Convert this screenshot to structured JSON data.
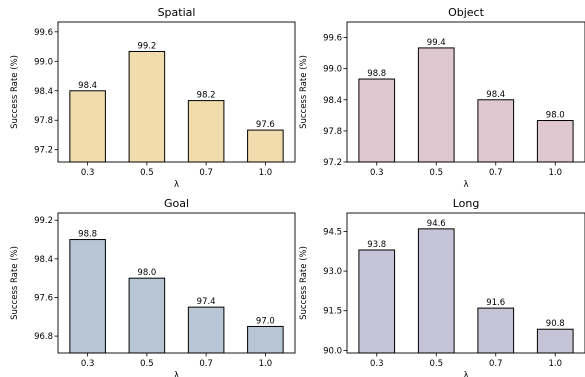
{
  "chart_data": [
    {
      "type": "bar",
      "title": "Spatial",
      "xlabel": "λ",
      "ylabel": "Success Rate (%)",
      "categories": [
        "0.3",
        "0.5",
        "0.7",
        "1.0"
      ],
      "values": [
        98.4,
        99.2,
        98.2,
        97.6
      ],
      "value_labels": [
        "98.4",
        "99.2",
        "98.2",
        "97.6"
      ],
      "ylim": [
        96.95,
        99.8
      ],
      "yticks": [
        97.2,
        97.8,
        98.4,
        99.0,
        99.6
      ],
      "ytick_labels": [
        "97.2",
        "97.8",
        "98.4",
        "99.0",
        "99.6"
      ],
      "color": "#f0dcac"
    },
    {
      "type": "bar",
      "title": "Object",
      "xlabel": "λ",
      "ylabel": "Success Rate (%)",
      "categories": [
        "0.3",
        "0.5",
        "0.7",
        "1.0"
      ],
      "values": [
        98.8,
        99.4,
        98.4,
        98.0
      ],
      "value_labels": [
        "98.8",
        "99.4",
        "98.4",
        "98.0"
      ],
      "ylim": [
        97.2,
        99.9
      ],
      "yticks": [
        97.2,
        97.8,
        98.4,
        99.0,
        99.6
      ],
      "ytick_labels": [
        "97.2",
        "97.8",
        "98.4",
        "99.0",
        "99.6"
      ],
      "color": "#dfc7cf"
    },
    {
      "type": "bar",
      "title": "Goal",
      "xlabel": "λ",
      "ylabel": "Success Rate (%)",
      "categories": [
        "0.3",
        "0.5",
        "0.7",
        "1.0"
      ],
      "values": [
        98.8,
        98.0,
        97.4,
        97.0
      ],
      "value_labels": [
        "98.8",
        "98.0",
        "97.4",
        "97.0"
      ],
      "ylim": [
        96.45,
        99.35
      ],
      "yticks": [
        96.8,
        97.6,
        98.4,
        99.2
      ],
      "ytick_labels": [
        "96.8",
        "97.6",
        "98.4",
        "99.2"
      ],
      "color": "#b8c5d5"
    },
    {
      "type": "bar",
      "title": "Long",
      "xlabel": "λ",
      "ylabel": "Success Rate (%)",
      "categories": [
        "0.3",
        "0.5",
        "0.7",
        "1.0"
      ],
      "values": [
        93.8,
        94.6,
        91.6,
        90.8
      ],
      "value_labels": [
        "93.8",
        "94.6",
        "91.6",
        "90.8"
      ],
      "ylim": [
        89.9,
        95.2
      ],
      "yticks": [
        90.0,
        91.5,
        93.0,
        94.5
      ],
      "ytick_labels": [
        "90.0",
        "91.5",
        "93.0",
        "94.5"
      ],
      "color": "#c5c3d6"
    }
  ]
}
